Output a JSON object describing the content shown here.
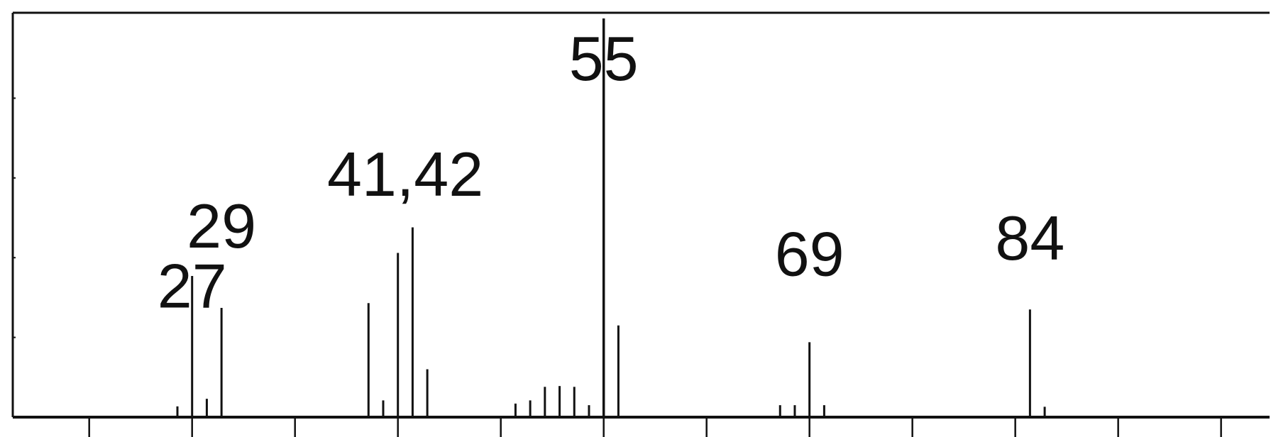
{
  "chart_data": {
    "type": "bar",
    "title": "",
    "xlabel": "",
    "ylabel": "",
    "xlim": [
      14.8,
      100.3
    ],
    "ylim": [
      0,
      100
    ],
    "grid": false,
    "x_ticks": [
      20,
      27,
      34,
      41,
      48,
      55,
      62,
      69,
      76,
      83,
      90,
      97
    ],
    "y_ticks": [
      20,
      40,
      60,
      80
    ],
    "peaks": [
      {
        "mz": 26,
        "intensity": 2.7
      },
      {
        "mz": 27,
        "intensity": 35.4
      },
      {
        "mz": 28,
        "intensity": 4.6
      },
      {
        "mz": 29,
        "intensity": 27.4
      },
      {
        "mz": 39,
        "intensity": 28.6
      },
      {
        "mz": 40,
        "intensity": 4.2
      },
      {
        "mz": 41,
        "intensity": 41.2
      },
      {
        "mz": 42,
        "intensity": 47.6
      },
      {
        "mz": 43,
        "intensity": 12.0
      },
      {
        "mz": 49,
        "intensity": 3.4
      },
      {
        "mz": 50,
        "intensity": 4.2
      },
      {
        "mz": 51,
        "intensity": 7.6
      },
      {
        "mz": 52,
        "intensity": 7.8
      },
      {
        "mz": 53,
        "intensity": 7.6
      },
      {
        "mz": 54,
        "intensity": 3.0
      },
      {
        "mz": 55,
        "intensity": 100
      },
      {
        "mz": 56,
        "intensity": 23.0
      },
      {
        "mz": 67,
        "intensity": 3.0
      },
      {
        "mz": 68,
        "intensity": 3.0
      },
      {
        "mz": 69,
        "intensity": 18.8
      },
      {
        "mz": 70,
        "intensity": 3.0
      },
      {
        "mz": 84,
        "intensity": 27.0
      },
      {
        "mz": 85,
        "intensity": 2.6
      }
    ],
    "labels": [
      {
        "text": "27",
        "mz": 27,
        "y": 27.5
      },
      {
        "text": "29",
        "mz": 29,
        "y": 42.5
      },
      {
        "text": "41,42",
        "mz": 41.5,
        "y": 55.5
      },
      {
        "text": "55",
        "mz": 55,
        "y": 84.5
      },
      {
        "text": "69",
        "mz": 69,
        "y": 35.5
      },
      {
        "text": "84",
        "mz": 84,
        "y": 39.5
      }
    ]
  }
}
